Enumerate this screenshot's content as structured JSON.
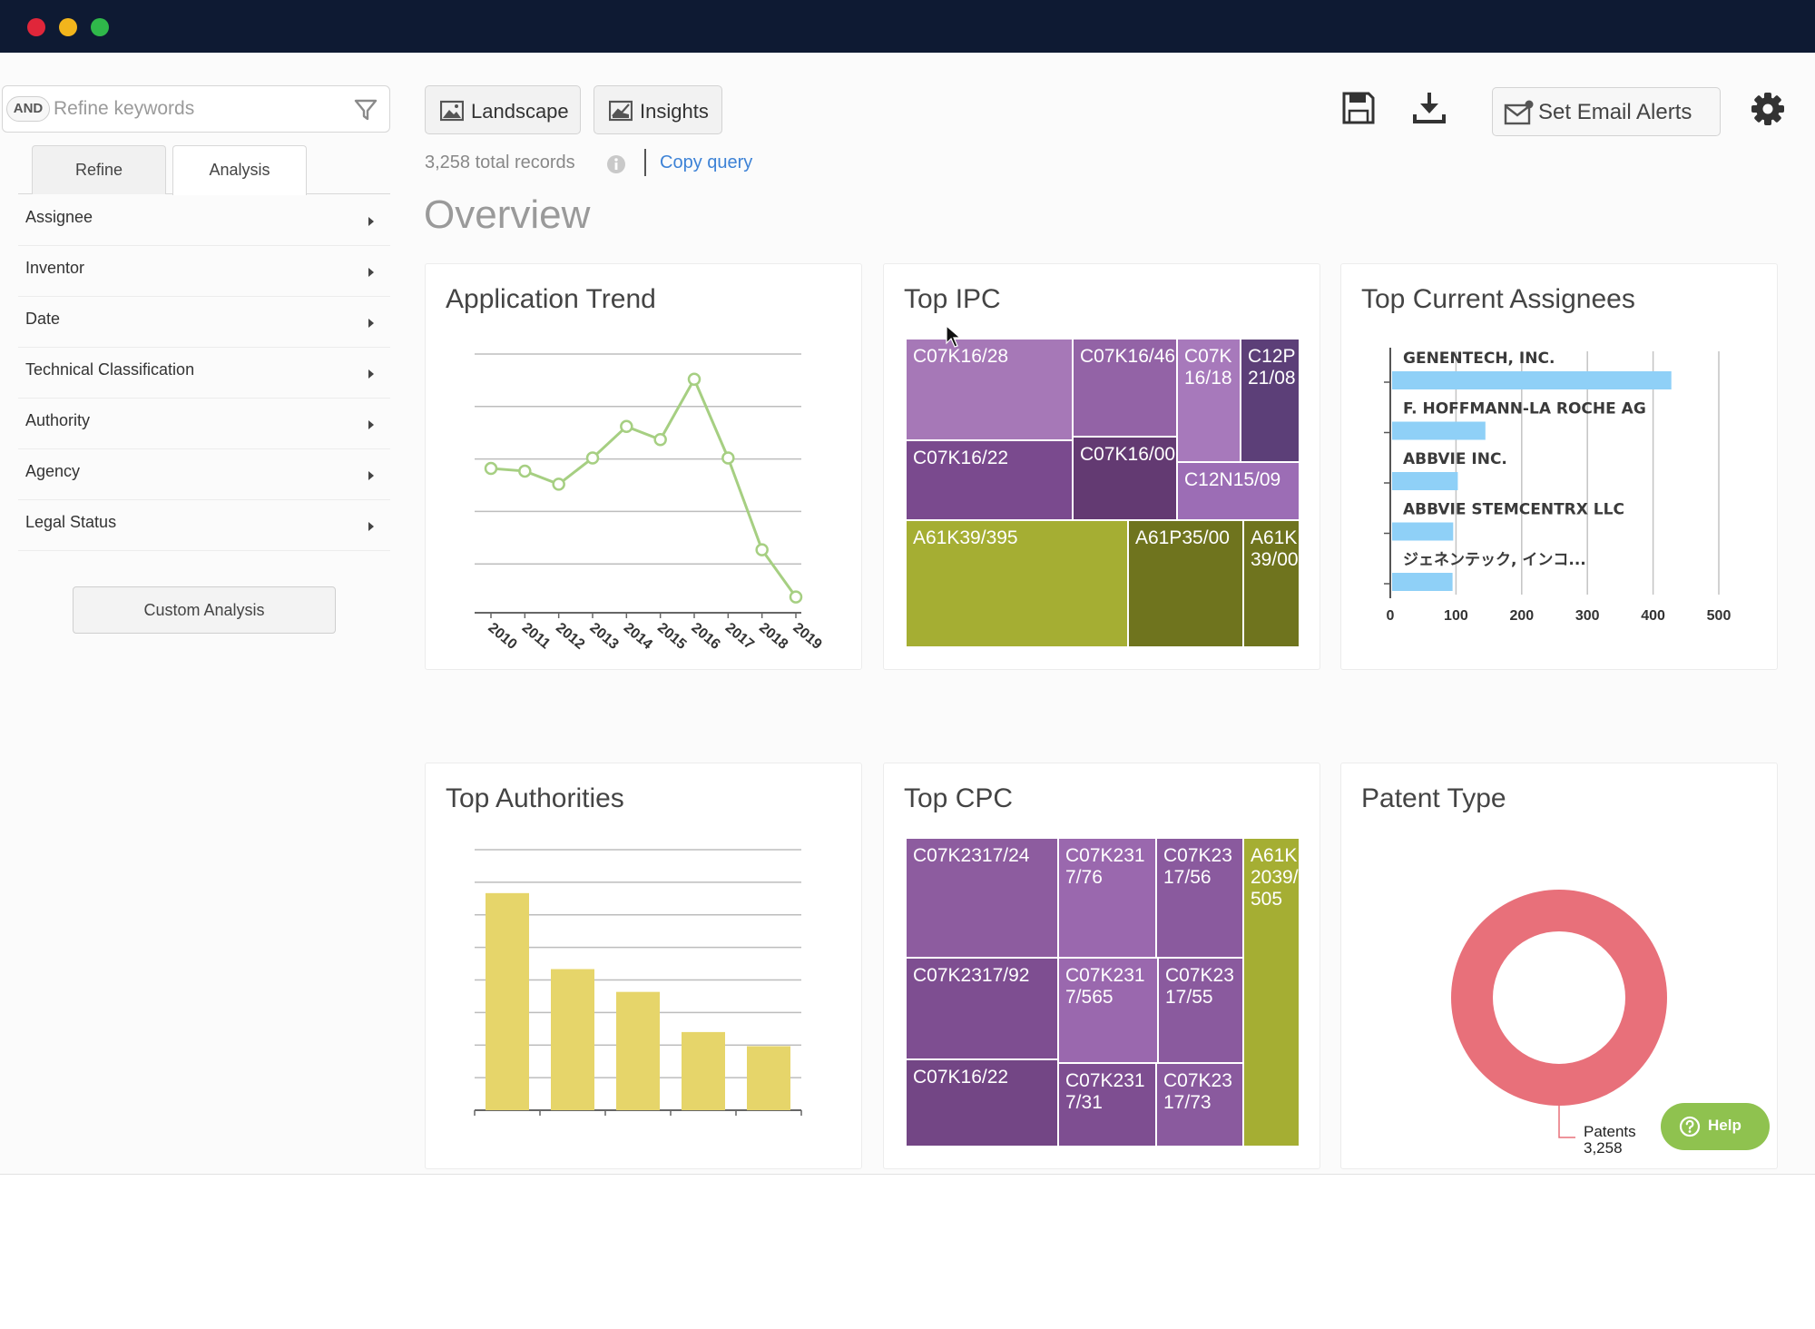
{
  "window": {
    "dots": [
      "#e0263a",
      "#f2b51c",
      "#2fb84a"
    ]
  },
  "sidebar": {
    "and_label": "AND",
    "search_placeholder": "Refine keywords",
    "tabs": [
      {
        "label": "Refine"
      },
      {
        "label": "Analysis"
      }
    ],
    "items": [
      {
        "label": "Assignee"
      },
      {
        "label": "Inventor"
      },
      {
        "label": "Date"
      },
      {
        "label": "Technical Classification"
      },
      {
        "label": "Authority"
      },
      {
        "label": "Agency"
      },
      {
        "label": "Legal Status"
      }
    ],
    "custom_analysis_label": "Custom Analysis"
  },
  "toolbar": {
    "landscape_label": "Landscape",
    "insights_label": "Insights",
    "email_alerts_label": "Set Email Alerts"
  },
  "summary": {
    "records_text": "3,258 total records",
    "copy_query_label": "Copy query",
    "overview_title": "Overview"
  },
  "colors": {
    "line": "#a6cf82",
    "assignee_bar": "#8fd0f7",
    "authority_bar": "#e6d56a",
    "donut": "#e8707a",
    "help": "#8fc24f",
    "link": "#3d82d6"
  },
  "charts": {
    "application_trend": {
      "title": "Application Trend",
      "chart_data": {
        "type": "line",
        "x": [
          "2010",
          "2011",
          "2012",
          "2013",
          "2014",
          "2015",
          "2016",
          "2017",
          "2018",
          "2019"
        ],
        "values": [
          55,
          54,
          49,
          59,
          71,
          66,
          89,
          59,
          24,
          6
        ],
        "ylim": [
          0,
          100
        ],
        "grid": true
      }
    },
    "top_ipc": {
      "title": "Top IPC",
      "cells": [
        {
          "label": "C07K16/28",
          "color": "#a678b7"
        },
        {
          "label": "C07K16/46",
          "color": "#9363a6"
        },
        {
          "label": "C07K16/18",
          "color": "#a779bb"
        },
        {
          "label": "C12P21/08",
          "color": "#5c3f78"
        },
        {
          "label": "C07K16/22",
          "color": "#7a4a8e"
        },
        {
          "label": "C07K16/00",
          "color": "#633a72"
        },
        {
          "label": "C12N15/09",
          "color": "#9c6db5"
        },
        {
          "label": "A61K39/395",
          "color": "#a5ae33"
        },
        {
          "label": "A61P35/00",
          "color": "#6f741e"
        },
        {
          "label": "A61K39/00",
          "color": "#6f741e"
        }
      ]
    },
    "top_assignees": {
      "title": "Top Current Assignees",
      "chart_data": {
        "type": "bar",
        "orientation": "horizontal",
        "categories": [
          "GENENTECH, INC.",
          "F. HOFFMANN-LA ROCHE AG",
          "ABBVIE INC.",
          "ABBVIE STEMCENTRX LLC",
          "ジェネンテック, インコ..."
        ],
        "values": [
          425,
          142,
          100,
          93,
          92
        ],
        "ticks": [
          "0",
          "100",
          "200",
          "300",
          "400",
          "500"
        ],
        "xlim": [
          0,
          500
        ],
        "grid": true
      }
    },
    "top_authorities": {
      "title": "Top Authorities",
      "chart_data": {
        "type": "bar",
        "values": [
          1000,
          650,
          545,
          360,
          295
        ],
        "ylim": [
          0,
          1200
        ],
        "grid": true
      }
    },
    "top_cpc": {
      "title": "Top CPC",
      "cells": [
        {
          "label": "C07K2317/24",
          "color": "#8d5c9f"
        },
        {
          "label": "C07K2317/76",
          "color": "#9a68ae"
        },
        {
          "label": "C07K2317/56",
          "color": "#8a5a9e"
        },
        {
          "label": "A61K2039/505",
          "color": "#a5ae33"
        },
        {
          "label": "C07K2317/92",
          "color": "#7e4e91"
        },
        {
          "label": "C07K2317/565",
          "color": "#9a68ae"
        },
        {
          "label": "C07K2317/55",
          "color": "#8a5a9e"
        },
        {
          "label": "C07K16/22",
          "color": "#734685"
        },
        {
          "label": "C07K2317/31",
          "color": "#7e4e91"
        },
        {
          "label": "C07K2317/73",
          "color": "#8a5a9e"
        }
      ]
    },
    "patent_type": {
      "title": "Patent Type",
      "chart_data": {
        "type": "pie",
        "variant": "donut",
        "slices": [
          {
            "name": "Patents",
            "value": 3258,
            "value_label": "3,258"
          }
        ]
      }
    }
  },
  "help_label": "Help"
}
